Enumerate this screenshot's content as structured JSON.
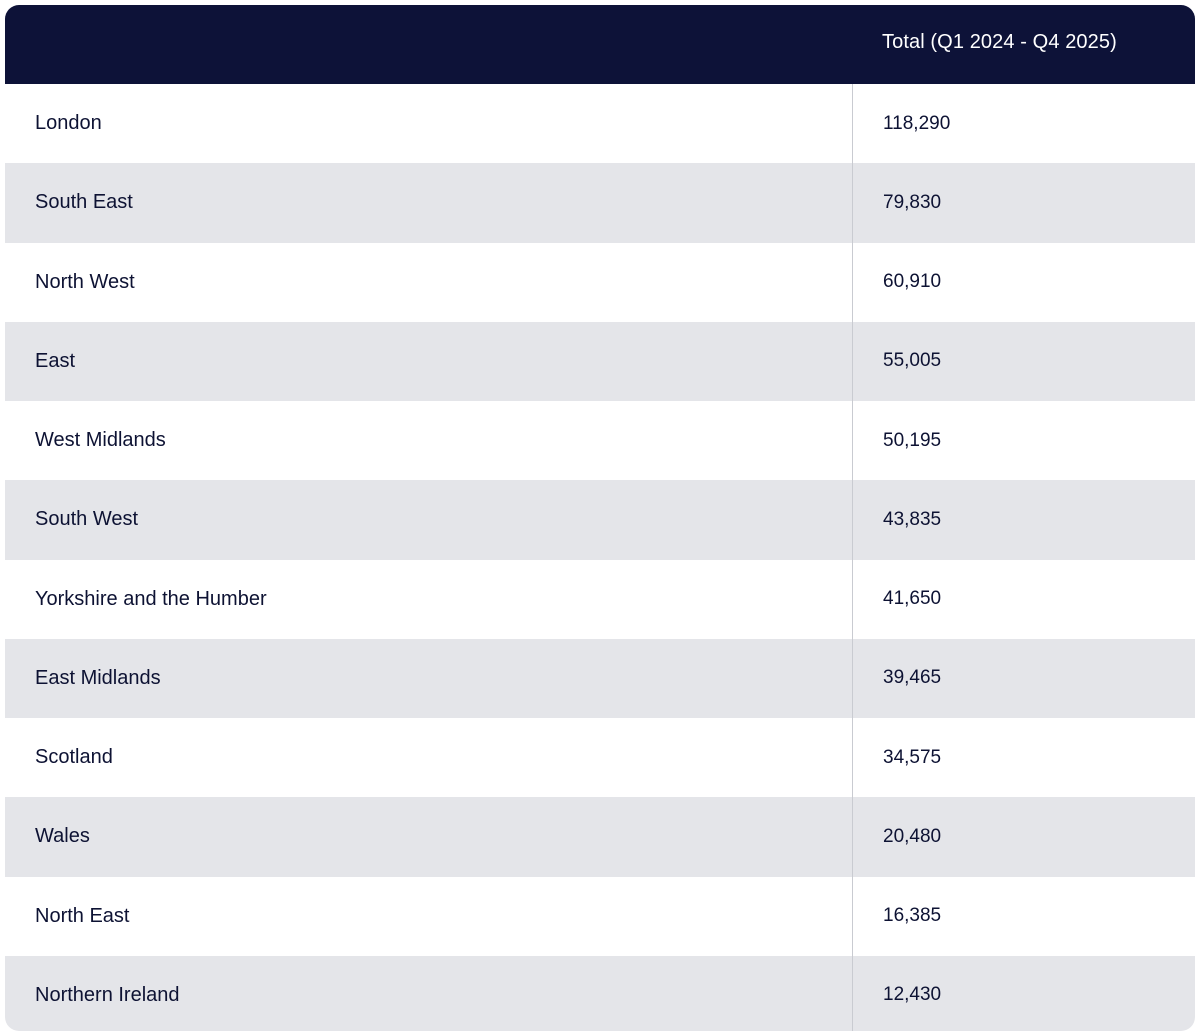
{
  "table": {
    "header": {
      "region_label": "",
      "total_label": "Total (Q1 2024 - Q4 2025)"
    },
    "rows": [
      {
        "region": "London",
        "total": "118,290"
      },
      {
        "region": "South East",
        "total": "79,830"
      },
      {
        "region": "North West",
        "total": "60,910"
      },
      {
        "region": "East",
        "total": "55,005"
      },
      {
        "region": "West Midlands",
        "total": "50,195"
      },
      {
        "region": "South West",
        "total": "43,835"
      },
      {
        "region": "Yorkshire and the Humber",
        "total": "41,650"
      },
      {
        "region": "East Midlands",
        "total": "39,465"
      },
      {
        "region": "Scotland",
        "total": "34,575"
      },
      {
        "region": "Wales",
        "total": "20,480"
      },
      {
        "region": "North East",
        "total": "16,385"
      },
      {
        "region": "Northern Ireland",
        "total": "12,430"
      }
    ]
  },
  "colors": {
    "header_bg": "#0d1238",
    "alt_row_bg": "#e4e5e9",
    "text": "#0d1233"
  }
}
